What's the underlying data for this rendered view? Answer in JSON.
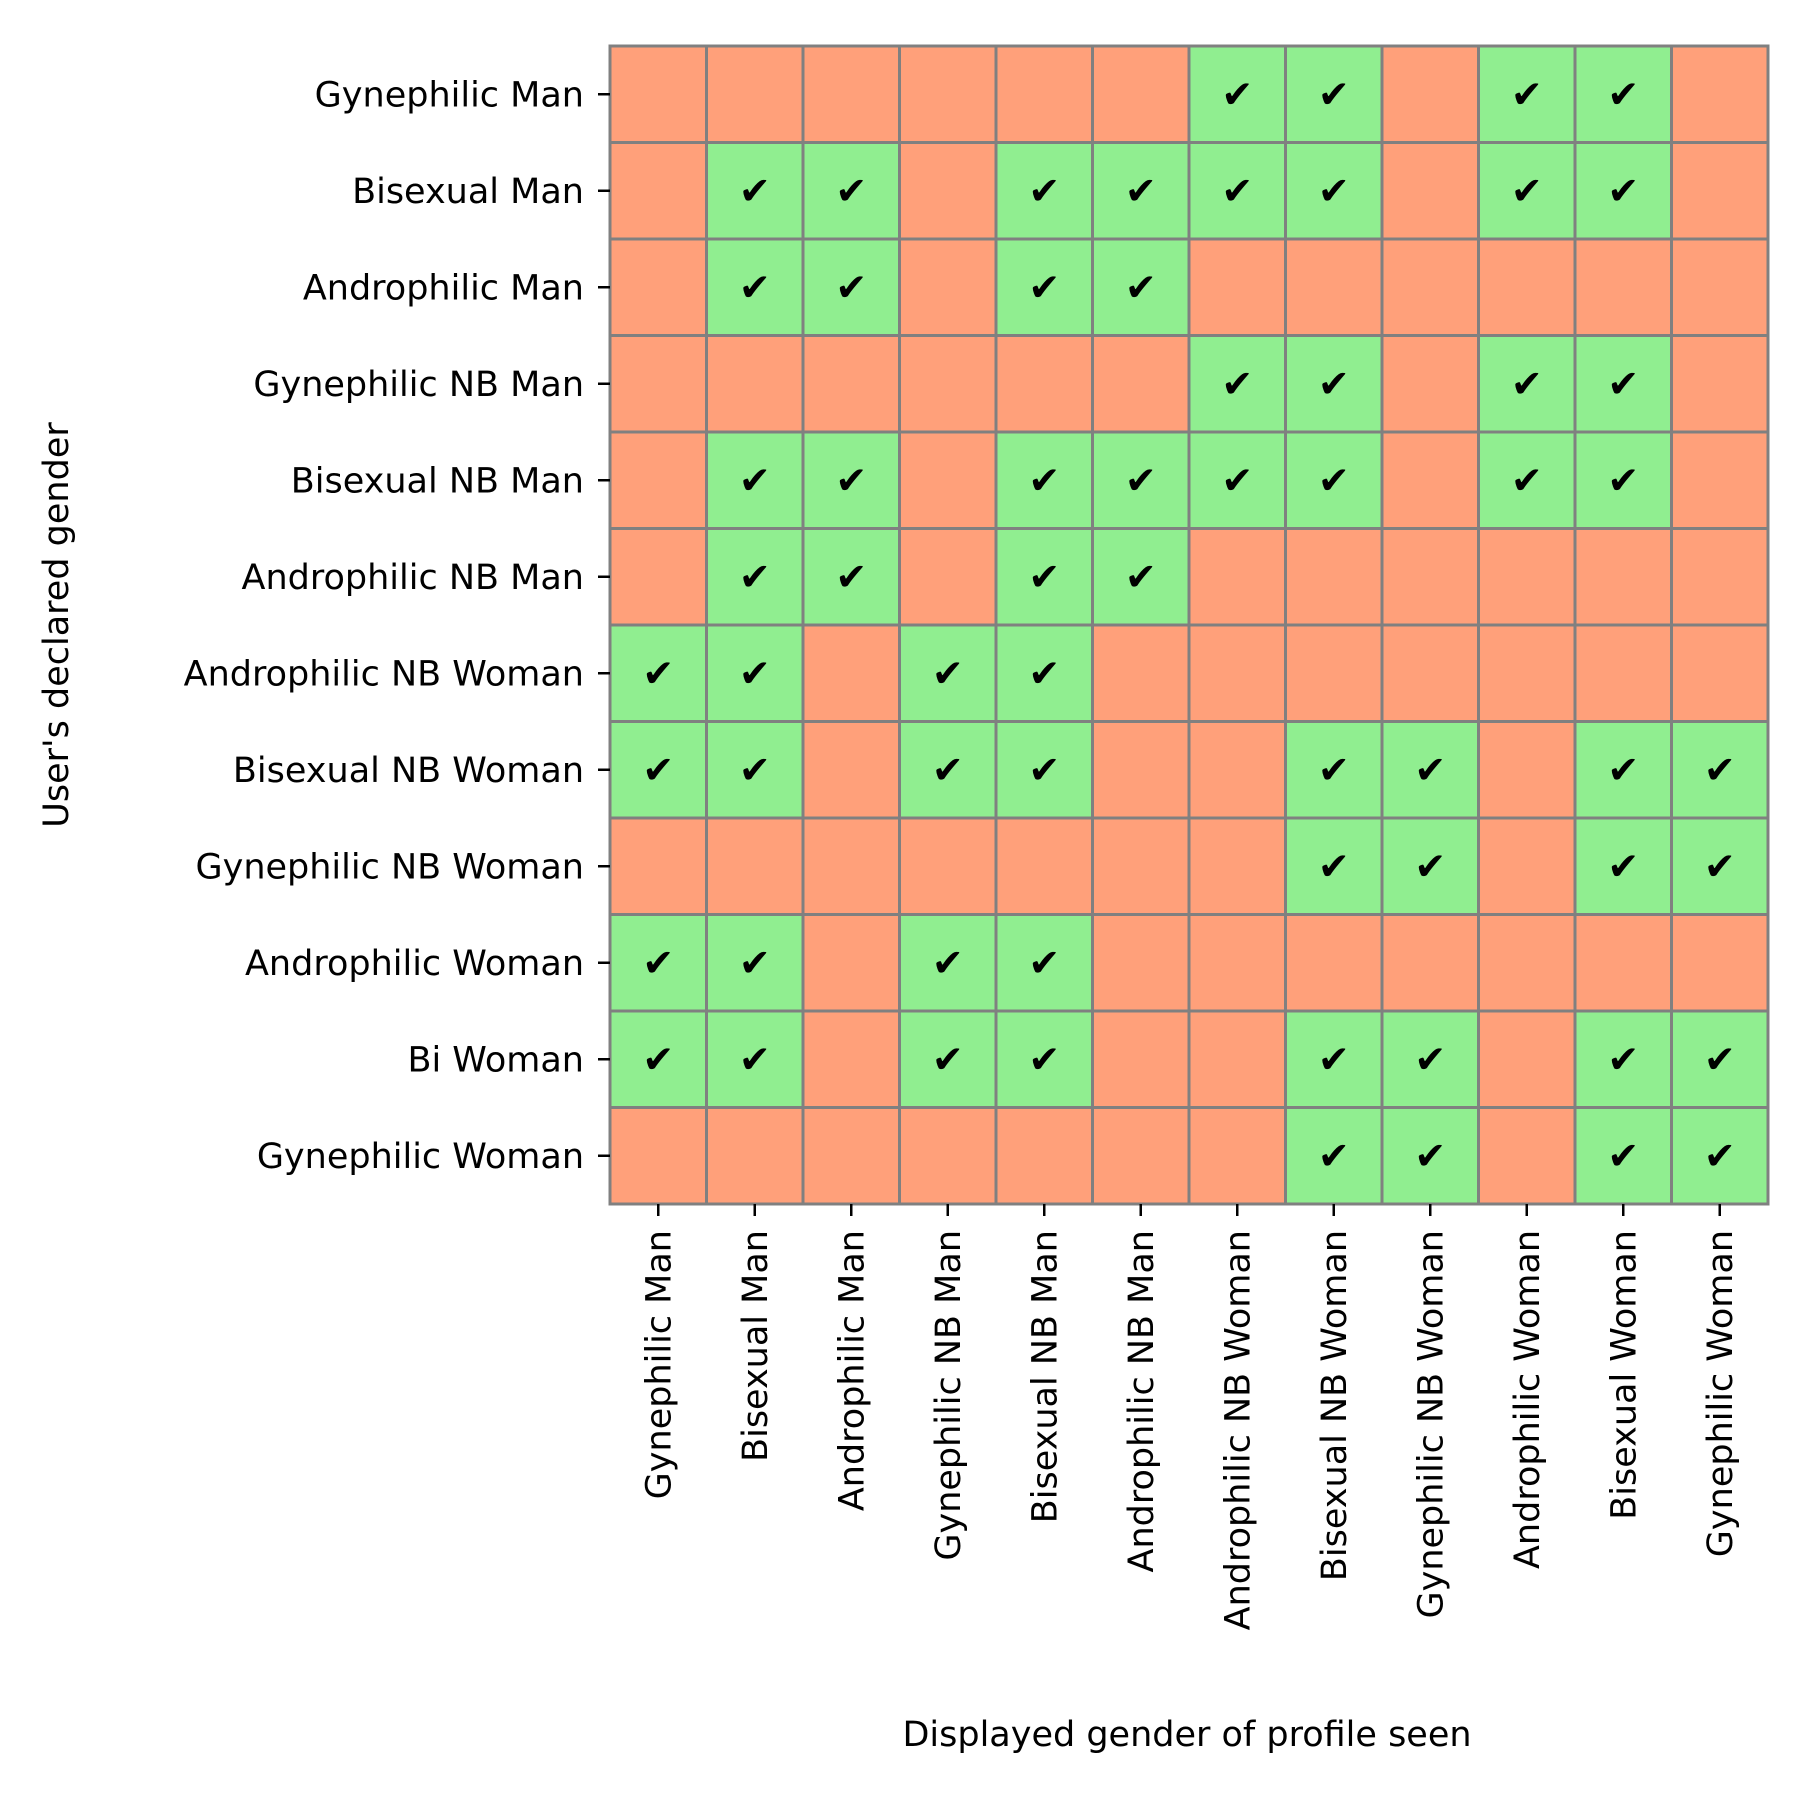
{
  "chart_data": {
    "type": "heatmap",
    "xlabel": "Displayed gender of profile seen",
    "ylabel": "User's declared gender",
    "x_categories": [
      "Gynephilic Man",
      "Bisexual Man",
      "Androphilic Man",
      "Gynephilic NB Man",
      "Bisexual NB Man",
      "Androphilic NB Man",
      "Androphilic NB Woman",
      "Bisexual NB Woman",
      "Gynephilic NB Woman",
      "Androphilic Woman",
      "Bisexual Woman",
      "Gynephilic Woman"
    ],
    "y_categories": [
      "Gynephilic Man",
      "Bisexual Man",
      "Androphilic Man",
      "Gynephilic NB Man",
      "Bisexual NB Man",
      "Androphilic NB Man",
      "Androphilic NB Woman",
      "Bisexual NB Woman",
      "Gynephilic NB Woman",
      "Androphilic Woman",
      "Bi Woman",
      "Gynephilic Woman"
    ],
    "values": [
      [
        0,
        0,
        0,
        0,
        0,
        0,
        1,
        1,
        0,
        1,
        1,
        0
      ],
      [
        0,
        1,
        1,
        0,
        1,
        1,
        1,
        1,
        0,
        1,
        1,
        0
      ],
      [
        0,
        1,
        1,
        0,
        1,
        1,
        0,
        0,
        0,
        0,
        0,
        0
      ],
      [
        0,
        0,
        0,
        0,
        0,
        0,
        1,
        1,
        0,
        1,
        1,
        0
      ],
      [
        0,
        1,
        1,
        0,
        1,
        1,
        1,
        1,
        0,
        1,
        1,
        0
      ],
      [
        0,
        1,
        1,
        0,
        1,
        1,
        0,
        0,
        0,
        0,
        0,
        0
      ],
      [
        1,
        1,
        0,
        1,
        1,
        0,
        0,
        0,
        0,
        0,
        0,
        0
      ],
      [
        1,
        1,
        0,
        1,
        1,
        0,
        0,
        1,
        1,
        0,
        1,
        1
      ],
      [
        0,
        0,
        0,
        0,
        0,
        0,
        0,
        1,
        1,
        0,
        1,
        1
      ],
      [
        1,
        1,
        0,
        1,
        1,
        0,
        0,
        0,
        0,
        0,
        0,
        0
      ],
      [
        1,
        1,
        0,
        1,
        1,
        0,
        0,
        1,
        1,
        0,
        1,
        1
      ],
      [
        0,
        0,
        0,
        0,
        0,
        0,
        0,
        1,
        1,
        0,
        1,
        1
      ]
    ],
    "cell_mark": "✔",
    "colors": {
      "match": "#90ee90",
      "no_match": "#ffa07a",
      "grid": "#808080",
      "text": "#000000"
    }
  }
}
